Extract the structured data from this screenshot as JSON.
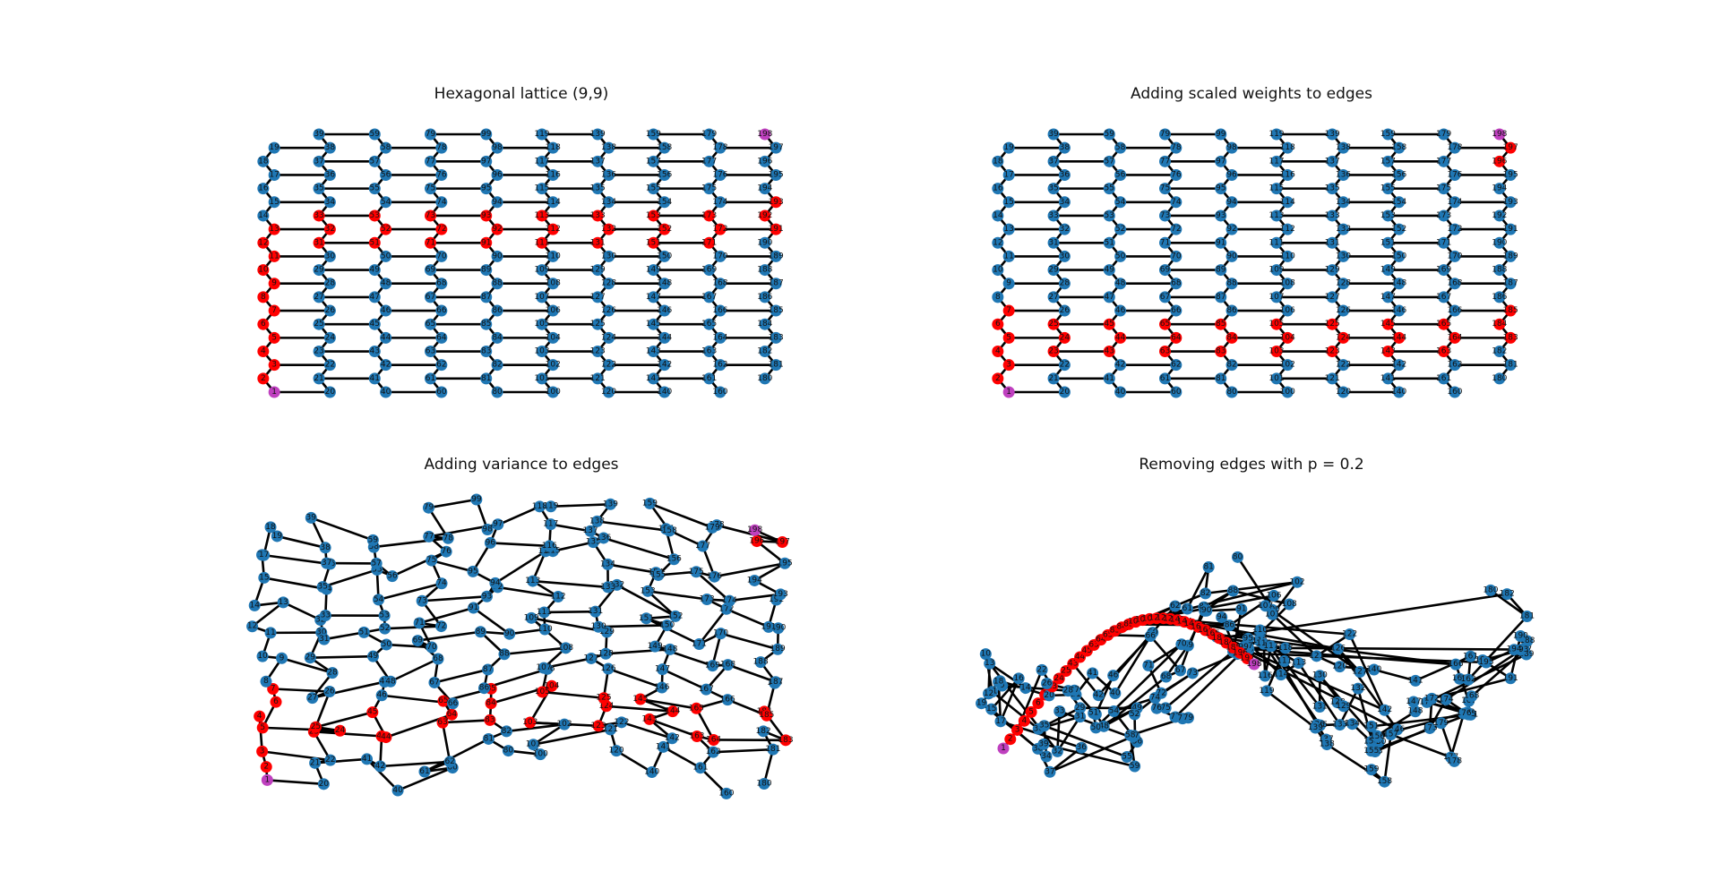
{
  "panels": [
    {
      "id": "p1",
      "title": "Hexagonal lattice (9,9)"
    },
    {
      "id": "p2",
      "title": "Adding scaled weights to edges"
    },
    {
      "id": "p3",
      "title": "Adding variance to edges"
    },
    {
      "id": "p4",
      "title": "Removing edges with p = 0.2"
    }
  ],
  "colors": {
    "node": "#1f77b4",
    "path": "#ff0000",
    "endpoint": "#bf40bf",
    "edge": "#000000"
  },
  "lattice": {
    "rows": 9,
    "cols": 9,
    "source_node": 1,
    "target_node": 198
  },
  "highlighted_paths": {
    "p1": [
      1,
      2,
      3,
      4,
      5,
      6,
      7,
      8,
      9,
      10,
      11,
      12,
      13,
      31,
      32,
      33,
      51,
      52,
      53,
      71,
      72,
      73,
      91,
      92,
      93,
      111,
      112,
      113,
      131,
      132,
      133,
      151,
      152,
      153,
      171,
      172,
      173,
      191,
      192,
      193,
      198
    ],
    "p2": [
      1,
      2,
      3,
      4,
      5,
      6,
      7,
      23,
      24,
      25,
      43,
      44,
      45,
      63,
      64,
      65,
      83,
      84,
      85,
      103,
      104,
      105,
      123,
      124,
      125,
      143,
      144,
      145,
      163,
      164,
      165,
      183,
      184,
      185,
      196,
      197,
      198
    ],
    "p3": [
      1,
      2,
      3,
      4,
      5,
      6,
      7,
      23,
      24,
      25,
      43,
      44,
      45,
      63,
      64,
      65,
      83,
      84,
      85,
      103,
      104,
      105,
      123,
      124,
      125,
      143,
      144,
      145,
      163,
      164,
      165,
      183,
      184,
      185,
      196,
      197,
      198
    ],
    "p4": [
      1,
      2,
      3,
      4,
      5,
      6,
      7,
      23,
      24,
      25,
      43,
      44,
      45,
      63,
      64,
      65,
      83,
      84,
      85,
      103,
      104,
      105,
      123,
      124,
      125,
      143,
      144,
      145,
      163,
      164,
      165,
      183,
      184,
      185,
      196,
      197,
      198
    ]
  }
}
